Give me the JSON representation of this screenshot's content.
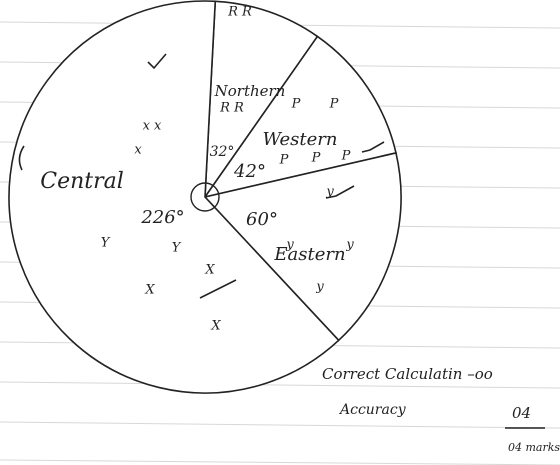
{
  "chart_data": {
    "type": "pie",
    "categories": [
      "Northern",
      "Western",
      "Eastern",
      "Central"
    ],
    "values": [
      32,
      42,
      60,
      226
    ],
    "value_labels": [
      "32°",
      "42°",
      "60°",
      "226°"
    ],
    "annotations": [
      "R R",
      "R R",
      "P",
      "P",
      "P",
      "P",
      "P",
      "y",
      "y",
      "y",
      "y",
      "x x",
      "x",
      "Y",
      "Y",
      "X",
      "X",
      "X"
    ],
    "notes": [
      "Correct Calculatin –oo",
      "Accuracy",
      "04",
      "04 marks"
    ]
  }
}
